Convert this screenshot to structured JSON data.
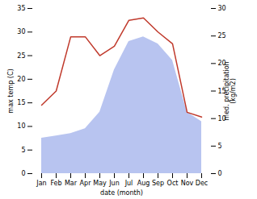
{
  "chart_data": {
    "type": "line",
    "categories": [
      "Jan",
      "Feb",
      "Mar",
      "Apr",
      "May",
      "Jun",
      "Jul",
      "Aug",
      "Sep",
      "Oct",
      "Nov",
      "Dec"
    ],
    "series": [
      {
        "type": "area",
        "color": "#b8c4f0",
        "values": [
          7.5,
          8.0,
          8.5,
          9.5,
          13.0,
          22.0,
          28.0,
          29.0,
          27.5,
          24.0,
          13.0,
          11.0
        ]
      },
      {
        "type": "line",
        "color": "#c0392b",
        "values": [
          14.5,
          17.5,
          29.0,
          29.0,
          25.0,
          27.0,
          32.5,
          33.0,
          30.0,
          27.5,
          13.0,
          12.0
        ]
      }
    ],
    "xlabel": "date (month)",
    "ylabel": "max temp (C)",
    "y2label": "med. precipitation\n(kg/m2)",
    "ylim": [
      0,
      35
    ],
    "yticks": [
      0,
      5,
      10,
      15,
      20,
      25,
      30,
      35
    ],
    "y2lim": [
      0,
      30
    ],
    "y2ticks": [
      0,
      5,
      10,
      15,
      20,
      25,
      30
    ],
    "grid": false
  }
}
